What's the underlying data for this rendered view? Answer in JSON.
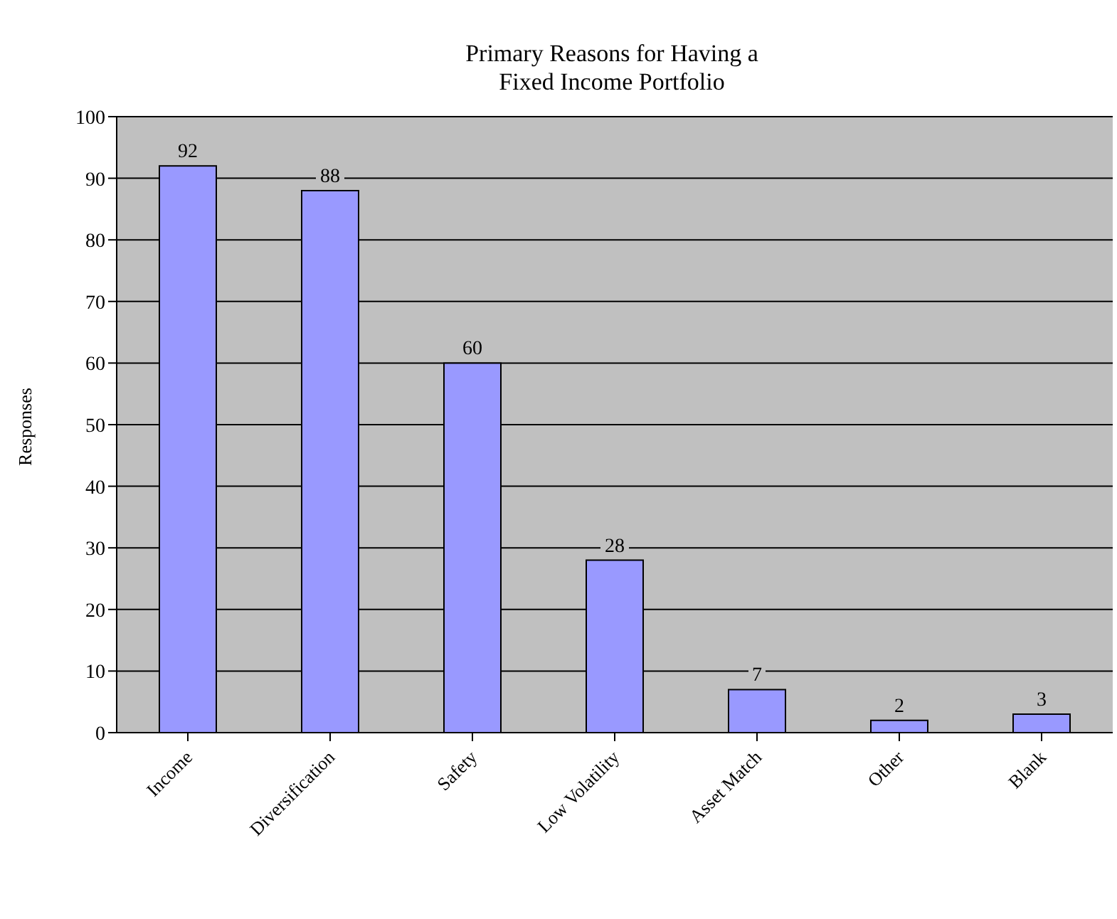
{
  "chart_data": {
    "type": "bar",
    "title": "Primary Reasons for Having a Fixed Income Portfolio",
    "ylabel": "Responses",
    "categories": [
      "Income",
      "Diversification",
      "Safety",
      "Low Volatility",
      "Asset Match",
      "Other",
      "Blank"
    ],
    "values": [
      92,
      88,
      60,
      28,
      7,
      2,
      3
    ],
    "color": "#9999ff",
    "ylim": [
      0,
      100
    ],
    "yticks": [
      0,
      10,
      20,
      30,
      40,
      50,
      60,
      70,
      80,
      90,
      100
    ],
    "grid": "y",
    "data_labels": true
  }
}
